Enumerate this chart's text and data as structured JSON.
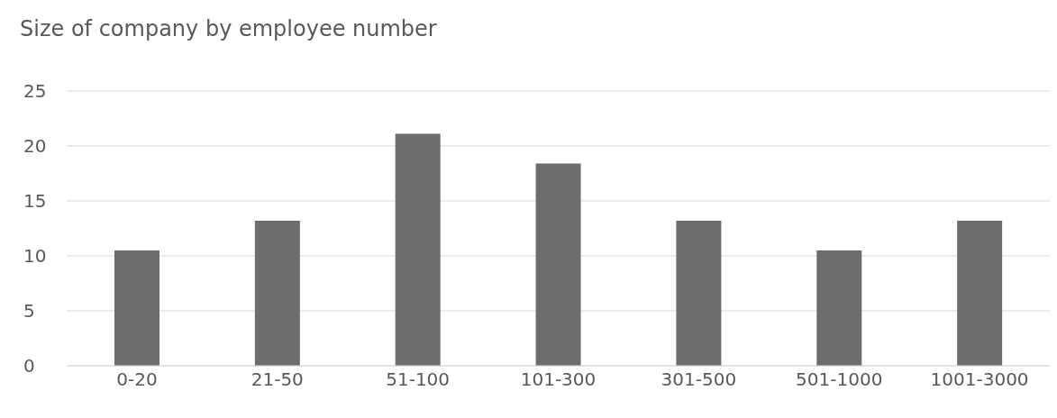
{
  "chart_data": {
    "type": "bar",
    "title": "Size of company by employee number",
    "categories": [
      "0-20",
      "21-50",
      "51-100",
      "101-300",
      "301-500",
      "501-1000",
      "1001-3000"
    ],
    "values": [
      10.5,
      13.2,
      21.1,
      18.4,
      13.2,
      10.5,
      13.2
    ],
    "color": "#6d6d6d",
    "ylim": [
      0,
      25
    ],
    "yticks": [
      0,
      5,
      10,
      15,
      20,
      25
    ],
    "grid": "y",
    "legend": false
  }
}
